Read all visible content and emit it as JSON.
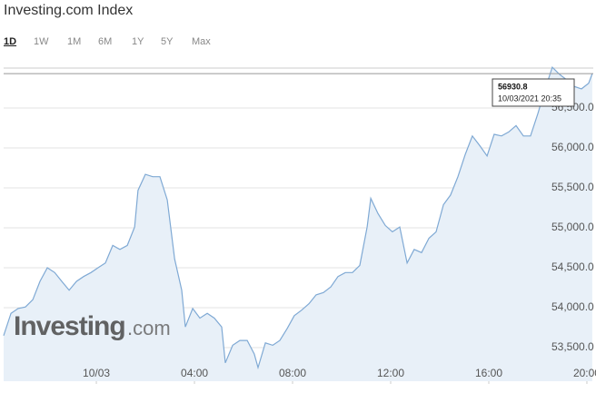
{
  "chart_data": {
    "type": "area",
    "title": "Investing.com Index",
    "ranges": [
      "1D",
      "1W",
      "1M",
      "6M",
      "1Y",
      "5Y",
      "Max"
    ],
    "selected_range": "1D",
    "watermark": {
      "brand": "Investing",
      "suffix": ".com"
    },
    "color": "#7fa9d4",
    "fill": "#e8f0f8",
    "grid": true,
    "x": [
      -3.78,
      -3.48,
      -3.19,
      -2.89,
      -2.59,
      -2.3,
      -2.0,
      -1.7,
      -1.41,
      -1.11,
      -0.81,
      -0.52,
      -0.22,
      0.07,
      0.37,
      0.67,
      0.96,
      1.26,
      1.56,
      1.7,
      2.0,
      2.3,
      2.59,
      2.89,
      3.19,
      3.48,
      3.63,
      3.93,
      4.22,
      4.52,
      4.81,
      5.11,
      5.26,
      5.56,
      5.85,
      6.15,
      6.44,
      6.59,
      6.89,
      7.19,
      7.48,
      7.78,
      8.07,
      8.37,
      8.67,
      8.96,
      9.26,
      9.56,
      9.85,
      10.15,
      10.44,
      10.74,
      11.04,
      11.19,
      11.48,
      11.78,
      12.07,
      12.37,
      12.67,
      12.96,
      13.26,
      13.56,
      13.85,
      14.15,
      14.44,
      14.74,
      15.04,
      15.33,
      15.63,
      15.93,
      16.22,
      16.52,
      16.81,
      17.11,
      17.41,
      17.7,
      18.0,
      18.3,
      18.59,
      18.89,
      19.19,
      19.48,
      19.78,
      20.07,
      20.22
    ],
    "values": [
      53650,
      53930,
      53990,
      54010,
      54100,
      54330,
      54500,
      54440,
      54330,
      54220,
      54330,
      54390,
      54440,
      54500,
      54560,
      54780,
      54730,
      54780,
      55010,
      55470,
      55670,
      55640,
      55640,
      55350,
      54610,
      54220,
      53760,
      53990,
      53870,
      53930,
      53870,
      53760,
      53310,
      53530,
      53590,
      53590,
      53420,
      53250,
      53560,
      53530,
      53590,
      53740,
      53900,
      53970,
      54050,
      54160,
      54190,
      54260,
      54390,
      54440,
      54440,
      54530,
      55010,
      55370,
      55180,
      55030,
      54950,
      55010,
      54560,
      54730,
      54690,
      54870,
      54950,
      55290,
      55410,
      55640,
      55920,
      56150,
      56030,
      55900,
      56170,
      56150,
      56200,
      56280,
      56150,
      56150,
      56430,
      56740,
      57010,
      56920,
      56850,
      56770,
      56740,
      56810,
      56930.8
    ],
    "xlim": [
      -3.78,
      20.26
    ],
    "xticks": [
      {
        "value": 0,
        "label": "10/03"
      },
      {
        "value": 4,
        "label": "04:00"
      },
      {
        "value": 8,
        "label": "08:00"
      },
      {
        "value": 12,
        "label": "12:00"
      },
      {
        "value": 16,
        "label": "16:00"
      },
      {
        "value": 20,
        "label": "20:00"
      }
    ],
    "ylim": [
      53080,
      57000
    ],
    "yticks": [
      {
        "value": 53500,
        "label": "53,500.0"
      },
      {
        "value": 54000,
        "label": "54,000.0"
      },
      {
        "value": 54500,
        "label": "54,500.0"
      },
      {
        "value": 55000,
        "label": "55,000.0"
      },
      {
        "value": 55500,
        "label": "55,500.0"
      },
      {
        "value": 56000,
        "label": "56,000.0"
      },
      {
        "value": 56500,
        "label": "56,500.0"
      }
    ],
    "tooltip": {
      "value": 56930.8,
      "date": "10/03/2021 20:35"
    }
  }
}
